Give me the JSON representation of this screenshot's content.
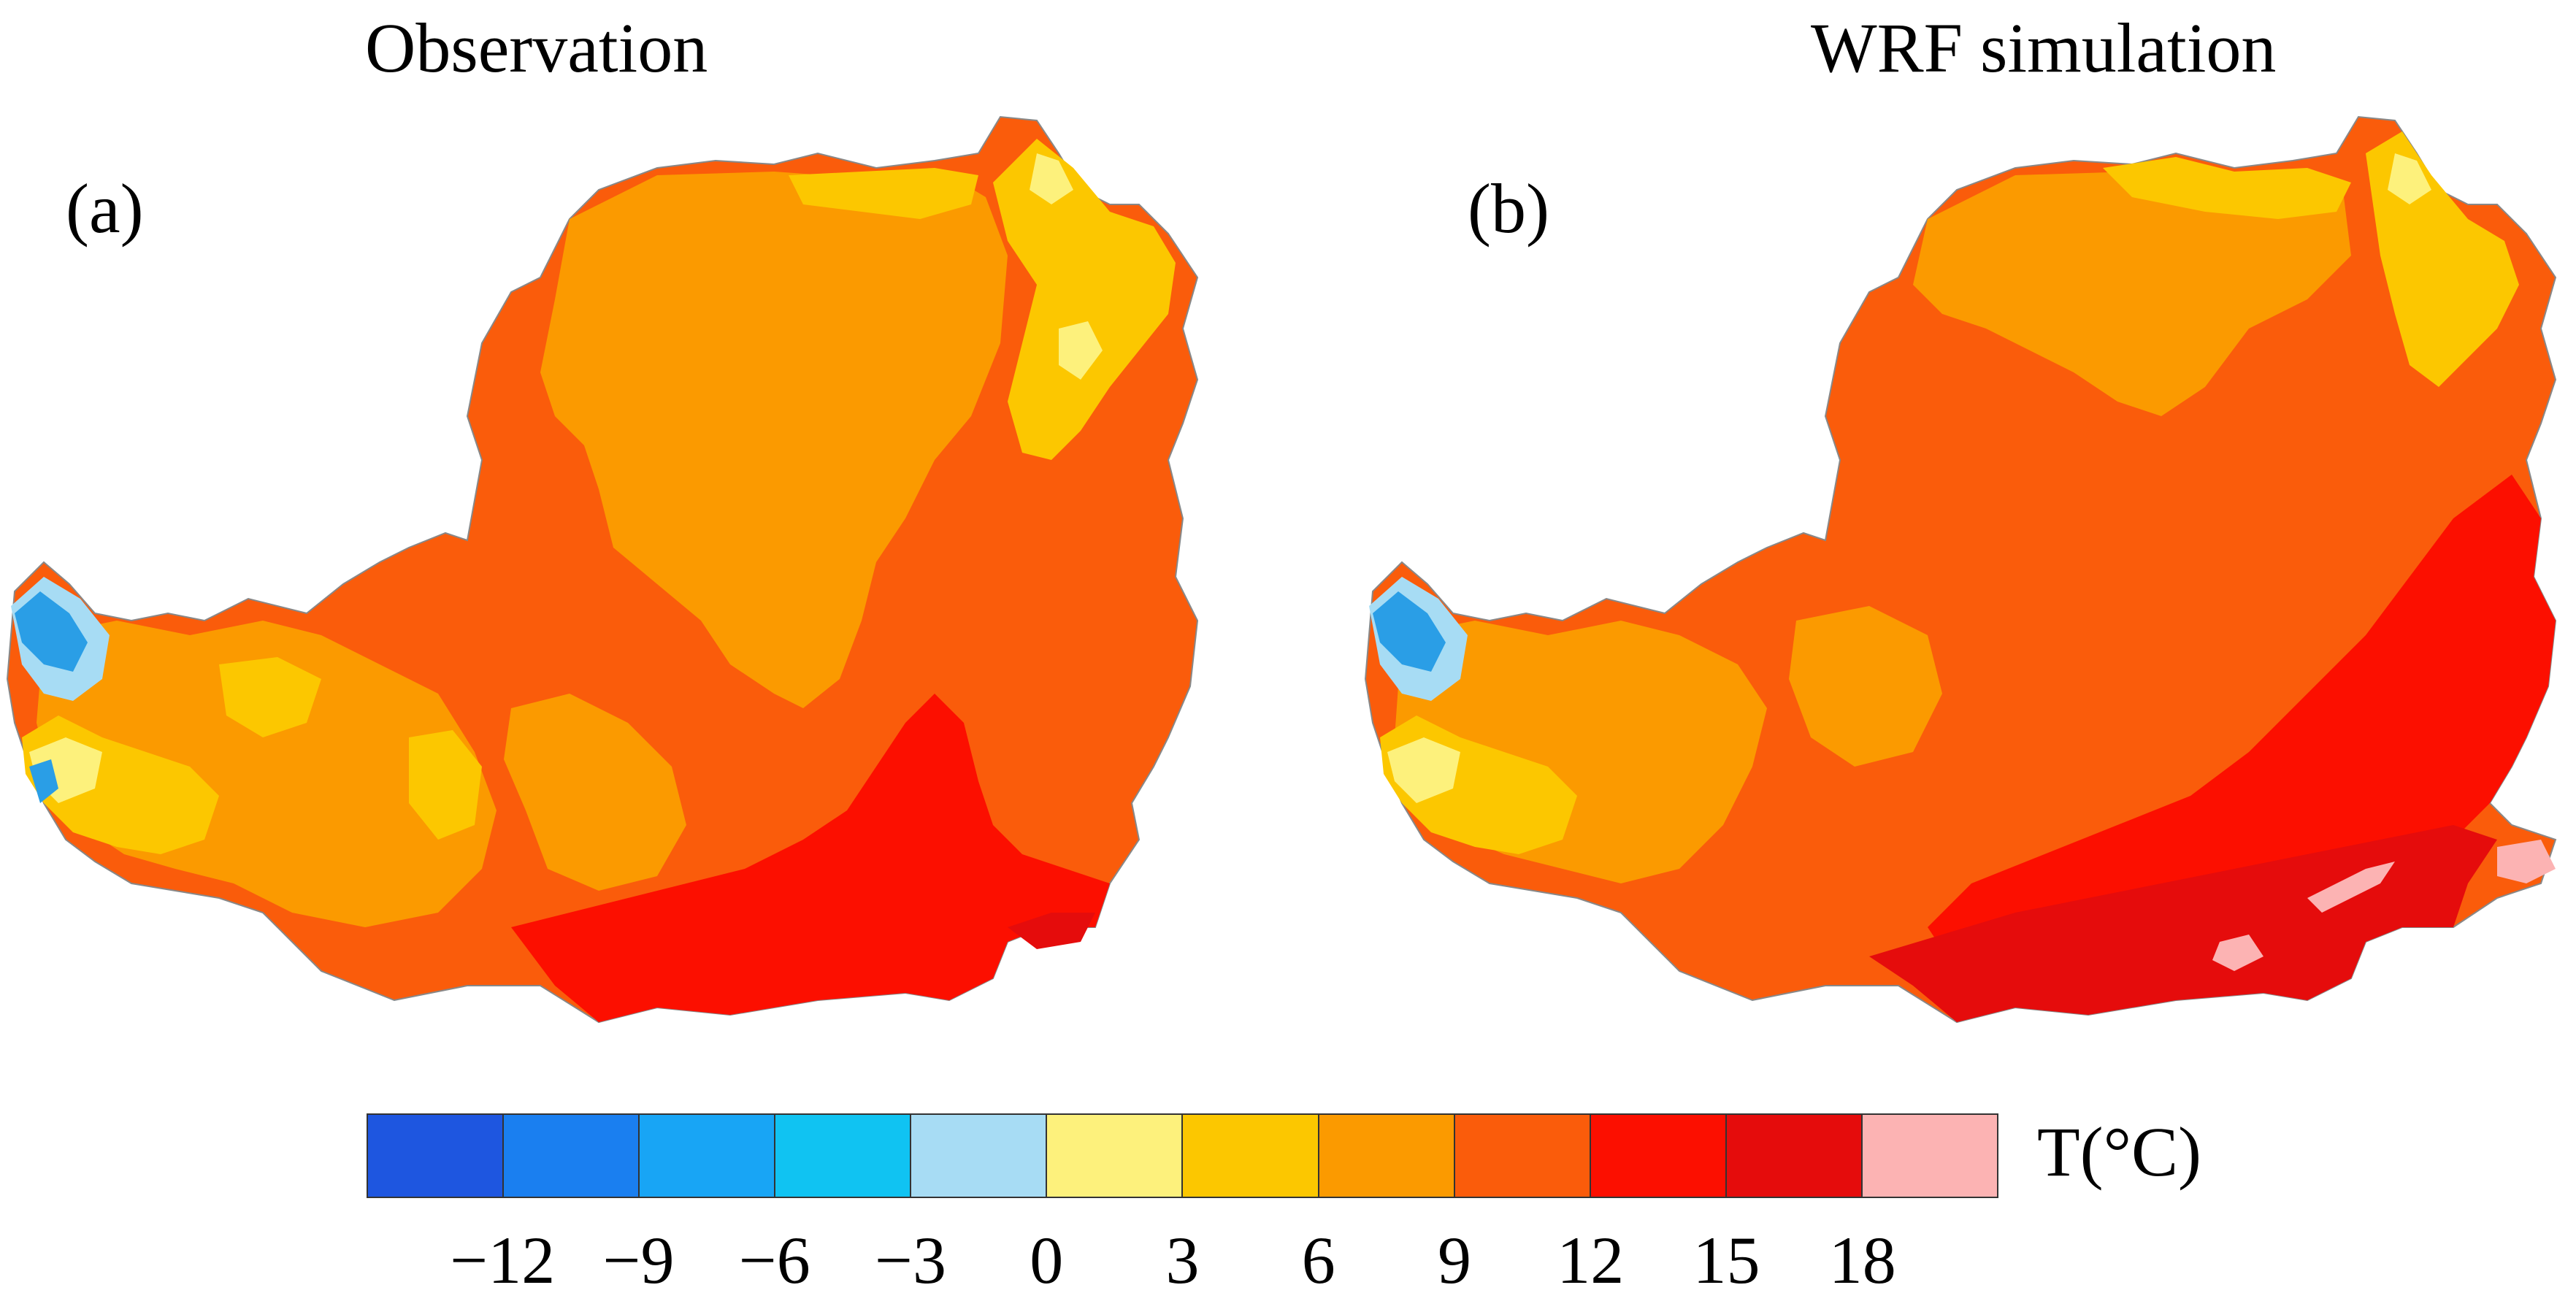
{
  "panels": [
    {
      "title": "Observation",
      "label": "(a)"
    },
    {
      "title": "WRF simulation",
      "label": "(b)"
    }
  ],
  "colorbar": {
    "unit": "T(°C)",
    "colors": [
      "#1e56e0",
      "#1a7ff0",
      "#18a5f5",
      "#10c3f2",
      "#a7dcf4",
      "#fdf17c",
      "#fcc700",
      "#fb9a00",
      "#fa5c0b",
      "#fc0f00",
      "#e50c0c",
      "#fcb3b3"
    ],
    "tick_labels": [
      "−12",
      "−9",
      "−6",
      "−3",
      "0",
      "3",
      "6",
      "9",
      "12",
      "15",
      "18"
    ]
  },
  "map_colors": {
    "cold_blue": "#2a9ee6",
    "light_blue": "#a7dcf4",
    "pale_yellow": "#fdf17c",
    "yellow": "#fcc700",
    "orange": "#fb9a00",
    "dark_orange": "#fa5c0b",
    "red": "#fc0f00",
    "dark_red": "#e50c0c",
    "pink": "#fcb3b3"
  }
}
